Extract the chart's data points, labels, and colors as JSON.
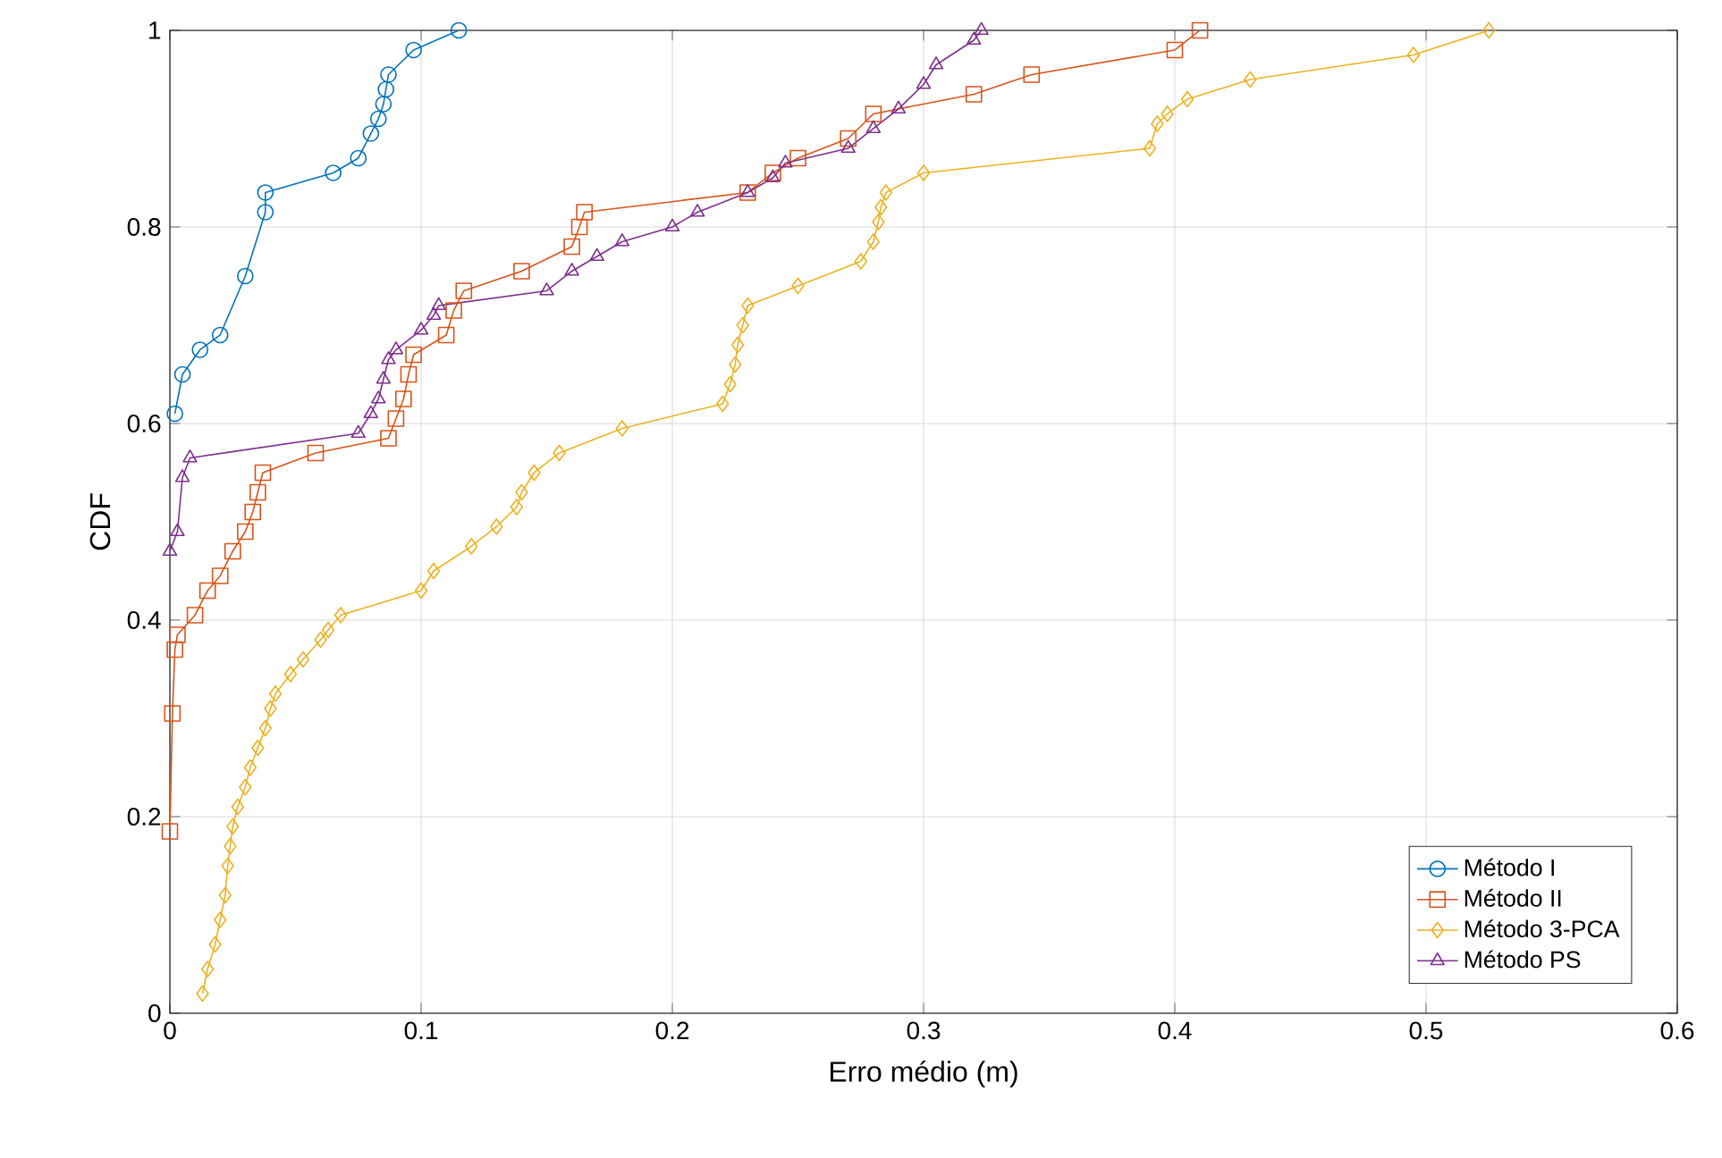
{
  "chart_data": {
    "type": "line",
    "xlabel": "Erro médio (m)",
    "ylabel": "CDF",
    "xlim": [
      0,
      0.6
    ],
    "ylim": [
      0,
      1
    ],
    "xticks": [
      0,
      0.1,
      0.2,
      0.3,
      0.4,
      0.5,
      0.6
    ],
    "yticks": [
      0,
      0.2,
      0.4,
      0.6,
      0.8,
      1
    ],
    "grid": true,
    "legend": "bottom right",
    "series": [
      {
        "name": "Método I",
        "color": "#0072bd",
        "marker": "circle",
        "x": [
          0.002,
          0.005,
          0.012,
          0.02,
          0.03,
          0.038,
          0.038,
          0.065,
          0.075,
          0.08,
          0.083,
          0.085,
          0.086,
          0.087,
          0.097,
          0.115
        ],
        "values": [
          0.61,
          0.65,
          0.675,
          0.69,
          0.75,
          0.815,
          0.835,
          0.855,
          0.87,
          0.895,
          0.91,
          0.925,
          0.94,
          0.955,
          0.98,
          1.0
        ]
      },
      {
        "name": "Método II",
        "color": "#d95319",
        "marker": "square",
        "x": [
          0,
          0.001,
          0.002,
          0.003,
          0.01,
          0.015,
          0.02,
          0.025,
          0.03,
          0.033,
          0.035,
          0.037,
          0.058,
          0.087,
          0.09,
          0.093,
          0.095,
          0.097,
          0.11,
          0.113,
          0.117,
          0.14,
          0.16,
          0.163,
          0.165,
          0.23,
          0.24,
          0.25,
          0.27,
          0.28,
          0.32,
          0.343,
          0.4,
          0.41
        ],
        "values": [
          0.185,
          0.305,
          0.37,
          0.385,
          0.405,
          0.43,
          0.445,
          0.47,
          0.49,
          0.51,
          0.53,
          0.55,
          0.57,
          0.585,
          0.605,
          0.625,
          0.65,
          0.67,
          0.69,
          0.715,
          0.735,
          0.755,
          0.78,
          0.8,
          0.815,
          0.835,
          0.855,
          0.87,
          0.89,
          0.915,
          0.935,
          0.955,
          0.98,
          1.0
        ]
      },
      {
        "name": "Método 3-PCA",
        "color": "#edb120",
        "marker": "diamond",
        "x": [
          0.013,
          0.015,
          0.018,
          0.02,
          0.022,
          0.023,
          0.024,
          0.025,
          0.027,
          0.03,
          0.032,
          0.035,
          0.038,
          0.04,
          0.042,
          0.048,
          0.053,
          0.06,
          0.063,
          0.068,
          0.1,
          0.105,
          0.12,
          0.13,
          0.138,
          0.14,
          0.145,
          0.155,
          0.18,
          0.22,
          0.223,
          0.225,
          0.226,
          0.228,
          0.23,
          0.25,
          0.275,
          0.28,
          0.282,
          0.283,
          0.285,
          0.3,
          0.39,
          0.393,
          0.397,
          0.405,
          0.43,
          0.495,
          0.525
        ],
        "values": [
          0.02,
          0.045,
          0.07,
          0.095,
          0.12,
          0.15,
          0.17,
          0.19,
          0.21,
          0.23,
          0.25,
          0.27,
          0.29,
          0.31,
          0.325,
          0.345,
          0.36,
          0.38,
          0.39,
          0.405,
          0.43,
          0.45,
          0.475,
          0.495,
          0.515,
          0.53,
          0.55,
          0.57,
          0.595,
          0.62,
          0.64,
          0.66,
          0.68,
          0.7,
          0.72,
          0.74,
          0.765,
          0.785,
          0.805,
          0.82,
          0.835,
          0.855,
          0.88,
          0.905,
          0.915,
          0.93,
          0.95,
          0.975,
          1.0
        ]
      },
      {
        "name": "Método PS",
        "color": "#7e2f8e",
        "marker": "triangle",
        "x": [
          0,
          0.003,
          0.005,
          0.008,
          0.075,
          0.08,
          0.083,
          0.085,
          0.087,
          0.09,
          0.1,
          0.105,
          0.107,
          0.15,
          0.16,
          0.17,
          0.18,
          0.2,
          0.21,
          0.23,
          0.24,
          0.245,
          0.27,
          0.28,
          0.29,
          0.3,
          0.305,
          0.32,
          0.323
        ],
        "values": [
          0.47,
          0.49,
          0.545,
          0.565,
          0.59,
          0.61,
          0.625,
          0.645,
          0.665,
          0.675,
          0.695,
          0.71,
          0.72,
          0.735,
          0.755,
          0.77,
          0.785,
          0.8,
          0.815,
          0.835,
          0.85,
          0.865,
          0.88,
          0.9,
          0.92,
          0.945,
          0.965,
          0.99,
          1.0
        ]
      }
    ]
  }
}
